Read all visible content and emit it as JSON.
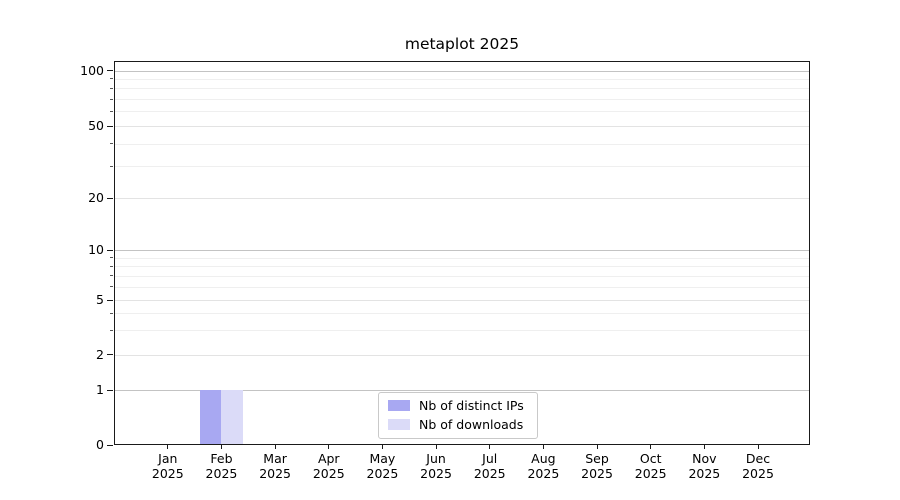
{
  "title": "metaplot 2025",
  "chart_data": {
    "type": "bar",
    "title": "metaplot 2025",
    "categories": [
      {
        "month": "Jan",
        "year": "2025"
      },
      {
        "month": "Feb",
        "year": "2025"
      },
      {
        "month": "Mar",
        "year": "2025"
      },
      {
        "month": "Apr",
        "year": "2025"
      },
      {
        "month": "May",
        "year": "2025"
      },
      {
        "month": "Jun",
        "year": "2025"
      },
      {
        "month": "Jul",
        "year": "2025"
      },
      {
        "month": "Aug",
        "year": "2025"
      },
      {
        "month": "Sep",
        "year": "2025"
      },
      {
        "month": "Oct",
        "year": "2025"
      },
      {
        "month": "Nov",
        "year": "2025"
      },
      {
        "month": "Dec",
        "year": "2025"
      }
    ],
    "series": [
      {
        "name": "Nb of distinct IPs",
        "color": "#a8a8f2",
        "values": [
          0,
          1,
          0,
          0,
          0,
          0,
          0,
          0,
          0,
          0,
          0,
          0
        ]
      },
      {
        "name": "Nb of downloads",
        "color": "#dbdbf8",
        "values": [
          0,
          1,
          0,
          0,
          0,
          0,
          0,
          0,
          0,
          0,
          0,
          0
        ]
      }
    ],
    "y_axis": {
      "scale": "symlog",
      "ticks": [
        0,
        1,
        2,
        5,
        10,
        20,
        50,
        100
      ],
      "minor_ticks": [
        3,
        4,
        6,
        7,
        8,
        9,
        30,
        40,
        60,
        70,
        80,
        90
      ],
      "range": [
        0,
        130
      ]
    },
    "x_axis": {
      "label": "",
      "tick_line2_shared": "2025"
    },
    "grid": true,
    "legend_position": "lower-center-inside",
    "colors": {
      "grid_major": "#c3c3c3",
      "grid_labeled_minor": "#e3e3e3",
      "grid_minor": "#efefef",
      "spine": "#1a1a1a"
    }
  }
}
